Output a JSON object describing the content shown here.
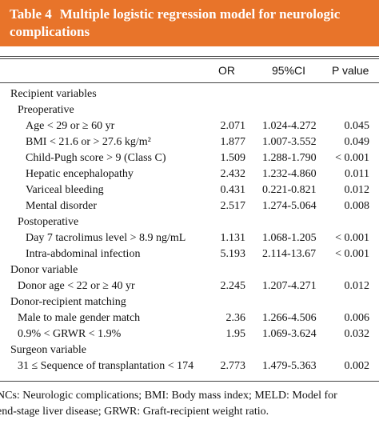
{
  "table": {
    "label": "Table 4",
    "title": "Multiple logistic regression model for neurologic complications",
    "columns": [
      "OR",
      "95%CI",
      "P value"
    ],
    "sections": [
      {
        "title": "Recipient variables",
        "subsections": [
          {
            "title": "Preoperative",
            "rows": [
              [
                "Age < 29 or ≥ 60 yr",
                "2.071",
                "1.024-4.272",
                "0.045"
              ],
              [
                "BMI < 21.6 or > 27.6 kg/m²",
                "1.877",
                "1.007-3.552",
                "0.049"
              ],
              [
                "Child-Pugh score > 9 (Class C)",
                "1.509",
                "1.288-1.790",
                "< 0.001"
              ],
              [
                "Hepatic encephalopathy",
                "2.432",
                "1.232-4.860",
                "0.011"
              ],
              [
                "Variceal bleeding",
                "0.431",
                "0.221-0.821",
                "0.012"
              ],
              [
                "Mental disorder",
                "2.517",
                "1.274-5.064",
                "0.008"
              ]
            ]
          },
          {
            "title": "Postoperative",
            "rows": [
              [
                "Day 7 tacrolimus level > 8.9 ng/mL",
                "1.131",
                "1.068-1.205",
                "< 0.001"
              ],
              [
                "Intra-abdominal infection",
                "5.193",
                "2.114-13.67",
                "< 0.001"
              ]
            ]
          }
        ]
      },
      {
        "title": "Donor variable",
        "rows": [
          [
            "Donor age < 22 or ≥ 40 yr",
            "2.245",
            "1.207-4.271",
            "0.012"
          ]
        ]
      },
      {
        "title": "Donor-recipient matching",
        "rows": [
          [
            "Male to male gender match",
            "2.36",
            "1.266-4.506",
            "0.006"
          ],
          [
            "0.9% < GRWR < 1.9%",
            "1.95",
            "1.069-3.624",
            "0.032"
          ]
        ]
      },
      {
        "title": "Surgeon variable",
        "rows": [
          [
            "31 ≤ Sequence of transplantation < 174",
            "2.773",
            "1.479-5.363",
            "0.002"
          ]
        ]
      }
    ],
    "footnote": [
      "NCs: Neurologic complications; BMI: Body mass index; MELD: Model for",
      "end-stage liver disease; GRWR: Graft-recipient weight ratio."
    ]
  }
}
